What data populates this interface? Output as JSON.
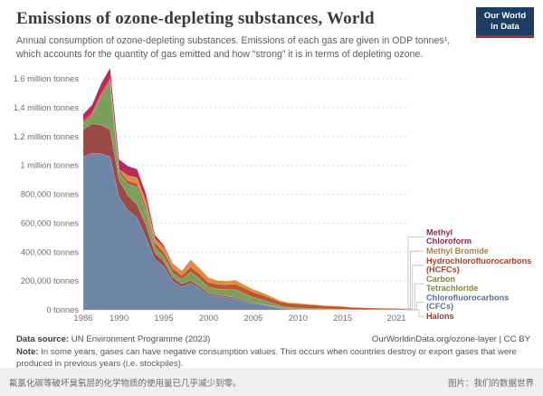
{
  "header": {
    "title": "Emissions of ozone-depleting substances, World",
    "subtitle": "Annual consumption of ozone-depleting substances. Emissions of each gas are given in ODP tonnes¹, which accounts for the quantity of gas emitted and how “strong” it is in terms of depleting ozone."
  },
  "logo": {
    "line1": "Our World",
    "line2": "in Data",
    "bg_color": "#1d3d63",
    "accent_color": "#aa322b"
  },
  "footer": {
    "datasource_label": "Data source:",
    "datasource_value": "UN Environment Programme (2023)",
    "link": "OurWorldinData.org/ozone-layer | CC BY",
    "note_label": "Note:",
    "note_value": "In some years, gases can have negative consumption values. This occurs when countries destroy or export gases that were produced in previous years (i.e. stockpiles)."
  },
  "strip": {
    "caption": "氟氯化碳等破坏臭氧层的化学物质的使用量已几乎减少到零。",
    "credit": "图片：我们的数据世界"
  },
  "chart_data": {
    "type": "area",
    "stacked": true,
    "unit": "ODP tonnes",
    "grid": "dashed horizontal",
    "legend_position": "right, elbow connectors to end of series",
    "ylim": [
      0,
      1600000
    ],
    "x": [
      1986,
      1987,
      1988,
      1989,
      1990,
      1991,
      1992,
      1993,
      1994,
      1995,
      1996,
      1997,
      1998,
      1999,
      2000,
      2001,
      2002,
      2003,
      2004,
      2005,
      2006,
      2007,
      2008,
      2009,
      2010,
      2011,
      2012,
      2013,
      2014,
      2015,
      2016,
      2017,
      2018,
      2019,
      2020,
      2021,
      2022
    ],
    "x_ticks": [
      1986,
      1990,
      1995,
      2000,
      2005,
      2010,
      2015,
      2021
    ],
    "y_ticks": [
      {
        "value": 0,
        "label": "0 tonnes"
      },
      {
        "value": 200000,
        "label": "200,000 tonnes"
      },
      {
        "value": 400000,
        "label": "400,000 tonnes"
      },
      {
        "value": 600000,
        "label": "600,000 tonnes"
      },
      {
        "value": 800000,
        "label": "800,000 tonnes"
      },
      {
        "value": 1000000,
        "label": "1 million tonnes"
      },
      {
        "value": 1200000,
        "label": "1.2 million tonnes"
      },
      {
        "value": 1400000,
        "label": "1.4 million tonnes"
      },
      {
        "value": 1600000,
        "label": "1.6 million tonnes"
      }
    ],
    "series": [
      {
        "key": "cfcs",
        "name": "Chlorofluorocarbons (CFCs)",
        "color": "#6f85a6",
        "text_color": "#56718f",
        "values": [
          1060000,
          1085000,
          1080000,
          1060000,
          780000,
          690000,
          640000,
          500000,
          350000,
          300000,
          200000,
          160000,
          185000,
          150000,
          100000,
          95000,
          85000,
          75000,
          60000,
          45000,
          35000,
          25000,
          12000,
          6000,
          3000,
          2000,
          2000,
          1000,
          1000,
          1000,
          0,
          0,
          0,
          0,
          0,
          0,
          0
        ]
      },
      {
        "key": "halons",
        "name": "Halons",
        "color": "#9c4a45",
        "text_color": "#9c3d2e",
        "values": [
          190000,
          205000,
          200000,
          190000,
          120000,
          100000,
          90000,
          90000,
          45000,
          35000,
          25000,
          20000,
          18000,
          15000,
          12000,
          10000,
          10000,
          10000,
          8000,
          6000,
          5000,
          4000,
          3000,
          2000,
          2000,
          1000,
          1000,
          1000,
          1000,
          1000,
          0,
          0,
          0,
          0,
          0,
          0,
          0
        ]
      },
      {
        "key": "carbon_tetrachloride",
        "name": "Carbon Tetrachloride",
        "color": "#7ba05b",
        "text_color": "#758c43",
        "values": [
          40000,
          60000,
          200000,
          330000,
          50000,
          80000,
          120000,
          100000,
          40000,
          35000,
          30000,
          30000,
          60000,
          50000,
          45000,
          40000,
          45000,
          55000,
          45000,
          35000,
          30000,
          20000,
          12000,
          10000,
          8000,
          7000,
          6000,
          5000,
          4000,
          4000,
          3000,
          3000,
          2000,
          2000,
          2000,
          2000,
          2000
        ]
      },
      {
        "key": "hcfcs",
        "name": "Hydrochlorofluorocarbons (HCFCs)",
        "color": "#c0572c",
        "text_color": "#a3402a",
        "values": [
          15000,
          16000,
          18000,
          20000,
          22000,
          25000,
          28000,
          30000,
          32000,
          33000,
          32000,
          30000,
          35000,
          35000,
          35000,
          33000,
          35000,
          40000,
          40000,
          38000,
          35000,
          32000,
          30000,
          28000,
          30000,
          28000,
          25000,
          22000,
          20000,
          18000,
          15000,
          13000,
          12000,
          10000,
          9000,
          8000,
          7000
        ]
      },
      {
        "key": "methyl_bromide",
        "name": "Methyl Bromide",
        "color": "#d98e3e",
        "text_color": "#b0813c",
        "values": [
          0,
          0,
          0,
          0,
          0,
          35000,
          38000,
          35000,
          28000,
          30000,
          25000,
          25000,
          45000,
          35000,
          30000,
          25000,
          25000,
          25000,
          20000,
          18000,
          15000,
          12000,
          8000,
          6000,
          5000,
          4000,
          3000,
          2000,
          2000,
          1000,
          1000,
          1000,
          1000,
          1000,
          1000,
          1000,
          1000
        ]
      },
      {
        "key": "methyl_chloroform",
        "name": "Methyl Chloroform",
        "color": "#b8295c",
        "text_color": "#8e2a52",
        "values": [
          50000,
          55000,
          70000,
          75000,
          70000,
          65000,
          60000,
          50000,
          25000,
          15000,
          8000,
          5000,
          4000,
          3000,
          2000,
          1000,
          1000,
          1000,
          1000,
          1000,
          0,
          0,
          0,
          0,
          0,
          0,
          0,
          0,
          0,
          0,
          0,
          0,
          0,
          0,
          0,
          0,
          0
        ]
      }
    ],
    "legend": [
      {
        "series_key": "methyl_chloroform",
        "lines": [
          "Methyl",
          "Chloroform"
        ]
      },
      {
        "series_key": "methyl_bromide",
        "lines": [
          "Methyl Bromide"
        ]
      },
      {
        "series_key": "hcfcs",
        "lines": [
          "Hydrochlorofluorocarbons",
          "(HCFCs)"
        ]
      },
      {
        "series_key": "carbon_tetrachloride",
        "lines": [
          "Carbon",
          "Tetrachloride"
        ]
      },
      {
        "series_key": "cfcs",
        "lines": [
          "Chlorofluorocarbons",
          "(CFCs)"
        ]
      },
      {
        "series_key": "halons",
        "lines": [
          "Halons"
        ]
      }
    ],
    "title": "Emissions of ozone-depleting substances, World",
    "xlabel": "",
    "ylabel": "ODP tonnes"
  }
}
